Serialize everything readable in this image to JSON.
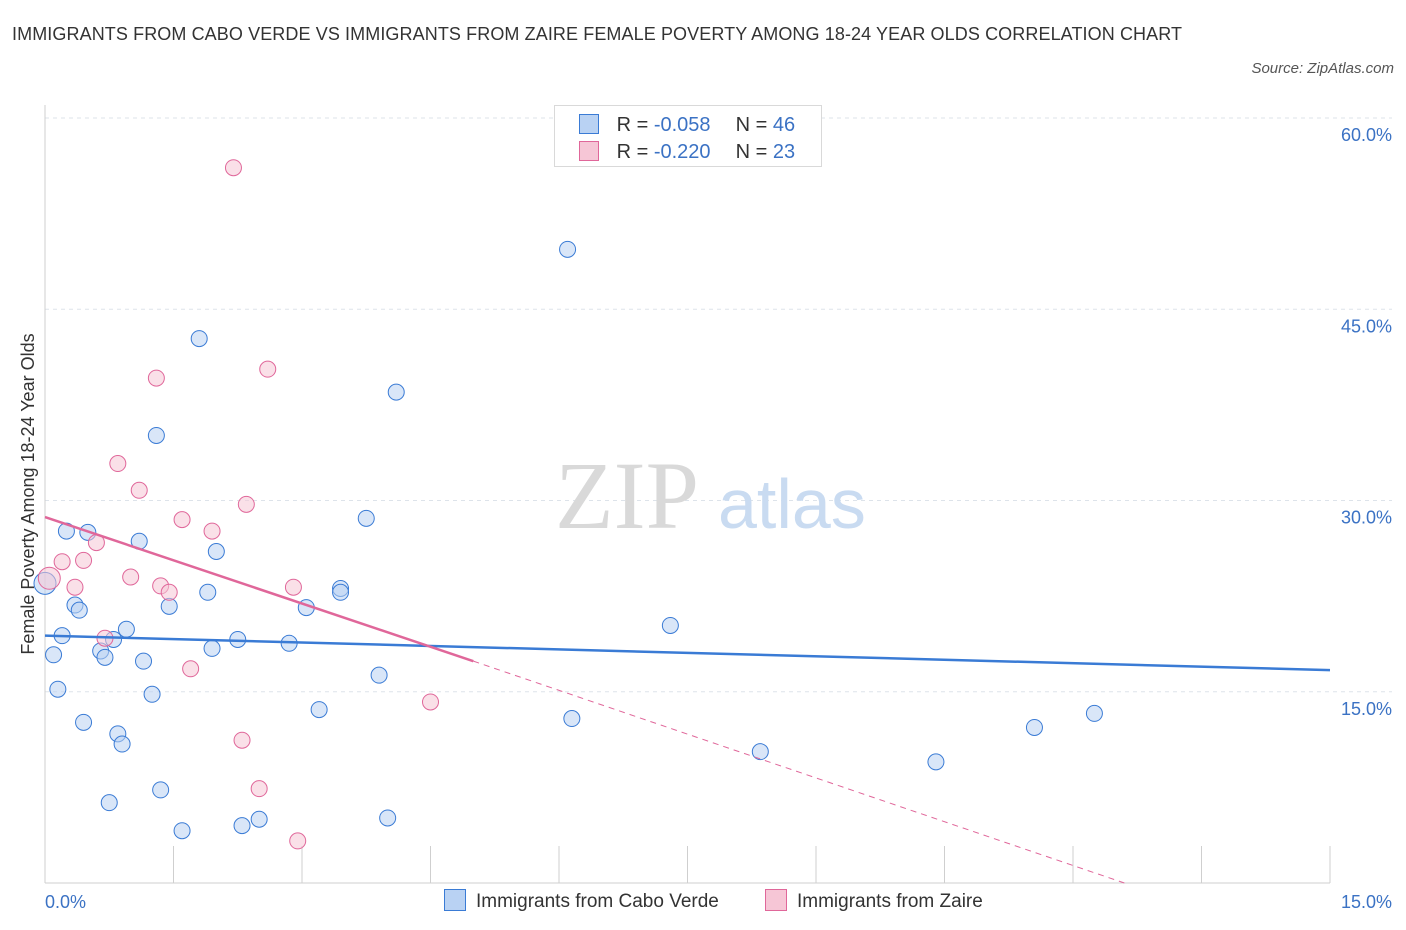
{
  "title": "IMMIGRANTS FROM CABO VERDE VS IMMIGRANTS FROM ZAIRE FEMALE POVERTY AMONG 18-24 YEAR OLDS CORRELATION CHART",
  "source": "Source: ZipAtlas.com",
  "watermark": {
    "zip": "ZIP",
    "atlas": "atlas"
  },
  "colors": {
    "blue": "#3a7bd5",
    "blue_fill": "#b9d2f3",
    "pink": "#e0679a",
    "pink_fill": "#f6c6d6",
    "axis_label": "#3b72c4",
    "grid": "#dde3ea"
  },
  "legend": {
    "rows": [
      {
        "r_label": "R =",
        "r_value": "-0.058",
        "n_label": "N =",
        "n_value": "46"
      },
      {
        "r_label": "R =",
        "r_value": "-0.220",
        "n_label": "N =",
        "n_value": "23"
      }
    ]
  },
  "bottom_legend": {
    "cabo_verde": "Immigrants from Cabo Verde",
    "zaire": "Immigrants from Zaire"
  },
  "chart_data": {
    "type": "scatter",
    "title": "IMMIGRANTS FROM CABO VERDE VS IMMIGRANTS FROM ZAIRE FEMALE POVERTY AMONG 18-24 YEAR OLDS CORRELATION CHART",
    "xlabel": "",
    "ylabel": "Female Poverty Among 18-24 Year Olds",
    "xlim": [
      0,
      15
    ],
    "ylim": [
      0,
      60
    ],
    "x_tick_labels": [
      "0.0%",
      "15.0%"
    ],
    "y_ticks": [
      15,
      30,
      45,
      60
    ],
    "y_tick_labels": [
      "15.0%",
      "30.0%",
      "45.0%",
      "60.0%"
    ],
    "grid": true,
    "legend_position": "top-center",
    "series": [
      {
        "name": "Immigrants from Cabo Verde",
        "r": -0.058,
        "n": 46,
        "trend": {
          "x": [
            0.0,
            15.0
          ],
          "y": [
            19.4,
            16.7
          ],
          "dashed_extension": false
        },
        "points": [
          [
            0.0,
            23.5
          ],
          [
            0.1,
            17.9
          ],
          [
            0.15,
            15.2
          ],
          [
            0.2,
            19.4
          ],
          [
            0.25,
            27.6
          ],
          [
            0.35,
            21.8
          ],
          [
            0.4,
            21.4
          ],
          [
            0.45,
            12.6
          ],
          [
            0.5,
            27.5
          ],
          [
            0.65,
            18.2
          ],
          [
            0.7,
            17.7
          ],
          [
            0.75,
            6.3
          ],
          [
            0.8,
            19.1
          ],
          [
            0.85,
            11.7
          ],
          [
            0.9,
            10.9
          ],
          [
            0.95,
            19.9
          ],
          [
            1.1,
            26.8
          ],
          [
            1.15,
            17.4
          ],
          [
            1.25,
            14.8
          ],
          [
            1.3,
            35.1
          ],
          [
            1.35,
            7.3
          ],
          [
            1.45,
            21.7
          ],
          [
            1.6,
            4.1
          ],
          [
            1.8,
            42.7
          ],
          [
            1.9,
            22.8
          ],
          [
            1.95,
            18.4
          ],
          [
            2.0,
            26.0
          ],
          [
            2.25,
            19.1
          ],
          [
            2.3,
            4.5
          ],
          [
            2.5,
            5.0
          ],
          [
            2.85,
            18.8
          ],
          [
            3.05,
            21.6
          ],
          [
            3.2,
            13.6
          ],
          [
            3.45,
            23.1
          ],
          [
            3.45,
            22.8
          ],
          [
            3.75,
            28.6
          ],
          [
            3.9,
            16.3
          ],
          [
            4.1,
            38.5
          ],
          [
            4.0,
            5.1
          ],
          [
            6.1,
            49.7
          ],
          [
            6.15,
            12.9
          ],
          [
            7.3,
            20.2
          ],
          [
            8.35,
            10.3
          ],
          [
            10.4,
            9.5
          ],
          [
            11.55,
            12.2
          ],
          [
            12.25,
            13.3
          ]
        ]
      },
      {
        "name": "Immigrants from Zaire",
        "r": -0.22,
        "n": 23,
        "trend": {
          "x": [
            0.0,
            5.0
          ],
          "y": [
            28.7,
            17.4
          ],
          "dashed_extension": true,
          "dashed_to": [
            12.6,
            0.0
          ]
        },
        "points": [
          [
            0.05,
            23.9
          ],
          [
            0.2,
            25.2
          ],
          [
            0.35,
            23.2
          ],
          [
            0.45,
            25.3
          ],
          [
            0.6,
            26.7
          ],
          [
            0.7,
            19.2
          ],
          [
            0.85,
            32.9
          ],
          [
            1.0,
            24.0
          ],
          [
            1.1,
            30.8
          ],
          [
            1.3,
            39.6
          ],
          [
            1.35,
            23.3
          ],
          [
            1.45,
            22.8
          ],
          [
            1.6,
            28.5
          ],
          [
            1.7,
            16.8
          ],
          [
            1.95,
            27.6
          ],
          [
            2.3,
            11.2
          ],
          [
            2.35,
            29.7
          ],
          [
            2.5,
            7.4
          ],
          [
            2.6,
            40.3
          ],
          [
            2.9,
            23.2
          ],
          [
            2.95,
            3.3
          ],
          [
            2.2,
            56.1
          ],
          [
            4.5,
            14.2
          ]
        ]
      }
    ]
  }
}
